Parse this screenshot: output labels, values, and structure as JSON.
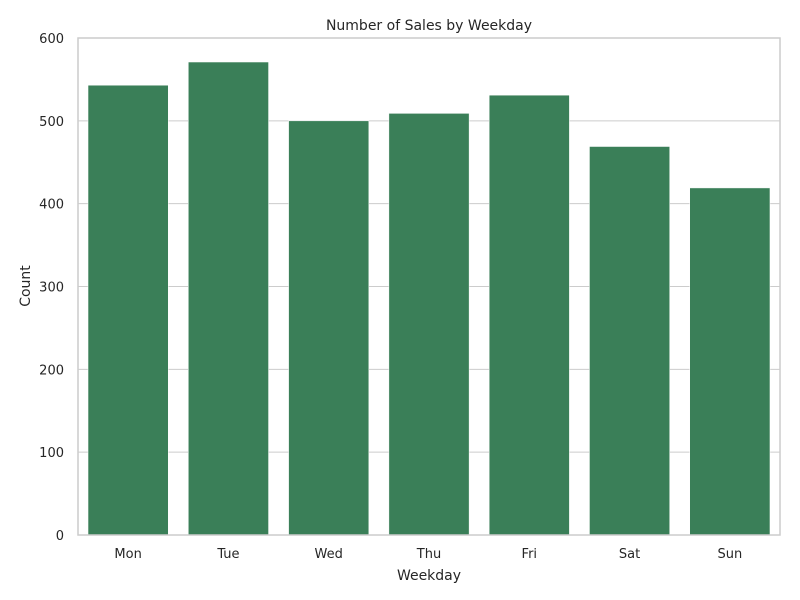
{
  "chart_data": {
    "type": "bar",
    "title": "Number of Sales by Weekday",
    "xlabel": "Weekday",
    "ylabel": "Count",
    "categories": [
      "Mon",
      "Tue",
      "Wed",
      "Thu",
      "Fri",
      "Sat",
      "Sun"
    ],
    "values": [
      543,
      571,
      500,
      509,
      531,
      469,
      419
    ],
    "ylim": [
      0,
      600
    ],
    "yticks": [
      0,
      100,
      200,
      300,
      400,
      500,
      600
    ],
    "grid": "y-major",
    "bar_color": "#3a7f58"
  }
}
